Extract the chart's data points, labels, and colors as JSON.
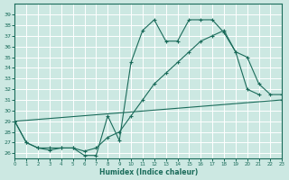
{
  "bg_color": "#cce8e2",
  "grid_color": "#b0d8d0",
  "line_color": "#1a6b5a",
  "xlabel": "Humidex (Indice chaleur)",
  "xlim": [
    0,
    23
  ],
  "ylim": [
    25.5,
    40.0
  ],
  "xticks": [
    0,
    1,
    2,
    3,
    4,
    5,
    6,
    7,
    8,
    9,
    10,
    11,
    12,
    13,
    14,
    15,
    16,
    17,
    18,
    19,
    20,
    21,
    22,
    23
  ],
  "yticks": [
    26,
    27,
    28,
    29,
    30,
    31,
    32,
    33,
    34,
    35,
    36,
    37,
    38,
    39
  ],
  "series": [
    {
      "x": [
        0,
        1,
        2,
        3,
        4,
        5,
        6,
        7,
        8,
        9,
        10,
        11,
        12,
        13,
        14,
        15,
        16,
        17,
        18,
        19,
        20,
        21
      ],
      "y": [
        29.0,
        27.0,
        26.5,
        26.5,
        26.5,
        26.5,
        25.8,
        25.8,
        29.5,
        27.2,
        34.5,
        37.5,
        38.5,
        36.5,
        36.5,
        38.5,
        38.5,
        38.5,
        37.3,
        35.5,
        32.0,
        31.5
      ]
    },
    {
      "x": [
        0,
        1,
        2,
        3,
        4,
        5,
        6,
        7,
        8,
        9,
        10,
        11,
        12,
        13,
        14,
        15,
        16,
        17,
        18,
        19,
        20,
        21,
        22,
        23
      ],
      "y": [
        29.0,
        27.0,
        26.5,
        26.3,
        26.5,
        26.5,
        26.2,
        26.5,
        27.5,
        28.0,
        29.5,
        31.0,
        32.5,
        33.5,
        34.5,
        35.5,
        36.5,
        37.0,
        37.5,
        35.5,
        35.0,
        32.5,
        31.5,
        31.5
      ]
    },
    {
      "x": [
        0,
        23
      ],
      "y": [
        29.0,
        31.0
      ]
    }
  ]
}
